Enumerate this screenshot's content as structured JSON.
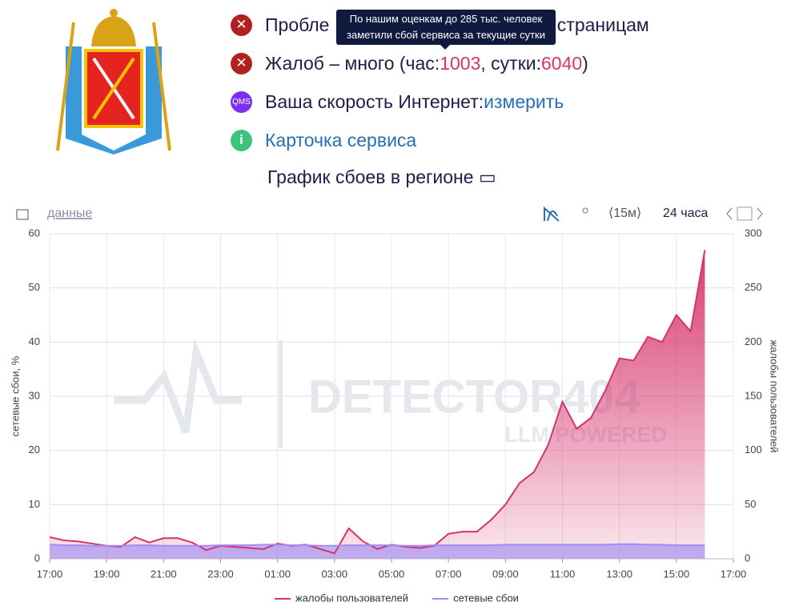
{
  "header": {
    "lines": [
      {
        "text_start": "Пробле",
        "text_end": "нальным страницам"
      },
      {
        "text_start": "Жалоб – много (час: ",
        "hour_value": "1003",
        "text_mid": ", сутки: ",
        "day_value": "6040",
        "text_end": ")"
      },
      {
        "badge": "QMS",
        "text": "Ваша скорость Интернет: ",
        "link": "измерить"
      },
      {
        "link": "Карточка сервиса"
      }
    ],
    "tooltip": [
      "По нашим оценкам до 285 тыс. человек",
      "заметили сбой сервиса за текущие сутки"
    ],
    "heading": "График сбоев в регионе"
  },
  "toolbar": {
    "data_link": "данные",
    "interval": "⟨15м⟩",
    "period": "24 часа"
  },
  "watermark": {
    "title": "DETECTOR404",
    "subtitle": "LLM POWERED"
  },
  "chart_data": {
    "type": "line",
    "categories": [
      "17:00",
      "17:30",
      "18:00",
      "18:30",
      "19:00",
      "19:30",
      "20:00",
      "20:30",
      "21:00",
      "21:30",
      "22:00",
      "22:30",
      "23:00",
      "23:30",
      "00:00",
      "00:30",
      "01:00",
      "01:30",
      "02:00",
      "02:30",
      "03:00",
      "03:30",
      "04:00",
      "04:30",
      "05:00",
      "05:30",
      "06:00",
      "06:30",
      "07:00",
      "07:30",
      "08:00",
      "08:30",
      "09:00",
      "09:30",
      "10:00",
      "10:30",
      "11:00",
      "11:30",
      "12:00",
      "12:30",
      "13:00",
      "13:30",
      "14:00",
      "14:30",
      "15:00",
      "15:30",
      "16:00"
    ],
    "xticks": [
      "17:00",
      "19:00",
      "21:00",
      "23:00",
      "01:00",
      "03:00",
      "05:00",
      "07:00",
      "09:00",
      "11:00",
      "13:00",
      "15:00",
      "17:00"
    ],
    "ylabel": "сетевые сбои, %",
    "y2label": "жалобы пользователей",
    "ylim": [
      0,
      60
    ],
    "yticks": [
      0,
      10,
      20,
      30,
      40,
      50,
      60
    ],
    "y2lim": [
      0,
      300
    ],
    "y2ticks": [
      0,
      50,
      100,
      150,
      200,
      250,
      300
    ],
    "grid": true,
    "legend": "bottom",
    "series": [
      {
        "name": "жалобы пользователей",
        "color": "#d6336c",
        "axis": "y2",
        "values": [
          20,
          17,
          16,
          14,
          12,
          11,
          20,
          15,
          19,
          19,
          15,
          8,
          12,
          11,
          10,
          9,
          14,
          12,
          13,
          9,
          5,
          28,
          16,
          9,
          13,
          11,
          10,
          12,
          23,
          25,
          25,
          36,
          50,
          70,
          80,
          105,
          145,
          120,
          130,
          155,
          185,
          183,
          205,
          200,
          225,
          210,
          285
        ]
      },
      {
        "name": "сетевые сбои",
        "color": "#a18cf0",
        "values": [
          2.6,
          2.5,
          2.5,
          2.4,
          2.4,
          2.4,
          2.5,
          2.5,
          2.4,
          2.4,
          2.4,
          2.4,
          2.5,
          2.5,
          2.5,
          2.6,
          2.6,
          2.5,
          2.5,
          2.4,
          2.4,
          2.5,
          2.5,
          2.5,
          2.5,
          2.4,
          2.4,
          2.5,
          2.5,
          2.5,
          2.5,
          2.5,
          2.6,
          2.6,
          2.6,
          2.6,
          2.6,
          2.6,
          2.6,
          2.6,
          2.7,
          2.7,
          2.6,
          2.6,
          2.5,
          2.5,
          2.5
        ]
      }
    ]
  }
}
